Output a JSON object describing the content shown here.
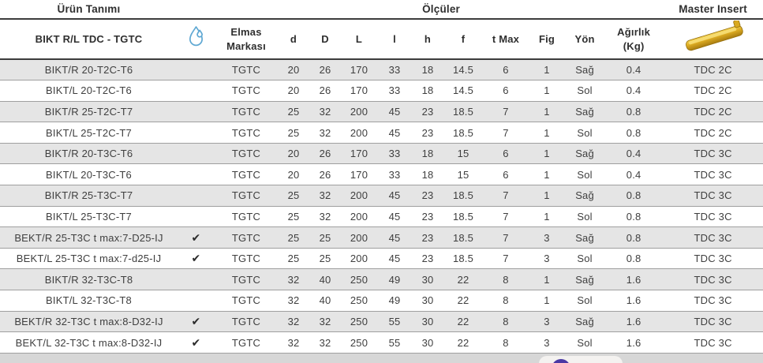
{
  "table": {
    "group_headers": {
      "product": "Ürün Tanımı",
      "dimensions": "Ölçüler",
      "master_insert": "Master Insert"
    },
    "columns": {
      "product": "BIKT R/L TDC - TGTC",
      "brand": "Elmas Markası",
      "d": "d",
      "D": "D",
      "L": "L",
      "l": "l",
      "h": "h",
      "f": "f",
      "t_max": "t Max",
      "fig": "Fig",
      "yon": "Yön",
      "weight_line1": "Ağırlık",
      "weight_line2": "(Kg)"
    },
    "check_glyph": "✔",
    "rows": [
      {
        "product": "BIKT/R 20-T2C-T6",
        "check": false,
        "brand": "TGTC",
        "d": "20",
        "D": "26",
        "L": "170",
        "l": "33",
        "h": "18",
        "f": "14.5",
        "t_max": "6",
        "fig": "1",
        "yon": "Sağ",
        "weight": "0.4",
        "insert": "TDC 2C"
      },
      {
        "product": "BIKT/L 20-T2C-T6",
        "check": false,
        "brand": "TGTC",
        "d": "20",
        "D": "26",
        "L": "170",
        "l": "33",
        "h": "18",
        "f": "14.5",
        "t_max": "6",
        "fig": "1",
        "yon": "Sol",
        "weight": "0.4",
        "insert": "TDC 2C"
      },
      {
        "product": "BIKT/R 25-T2C-T7",
        "check": false,
        "brand": "TGTC",
        "d": "25",
        "D": "32",
        "L": "200",
        "l": "45",
        "h": "23",
        "f": "18.5",
        "t_max": "7",
        "fig": "1",
        "yon": "Sağ",
        "weight": "0.8",
        "insert": "TDC 2C"
      },
      {
        "product": "BIKT/L 25-T2C-T7",
        "check": false,
        "brand": "TGTC",
        "d": "25",
        "D": "32",
        "L": "200",
        "l": "45",
        "h": "23",
        "f": "18.5",
        "t_max": "7",
        "fig": "1",
        "yon": "Sol",
        "weight": "0.8",
        "insert": "TDC 2C"
      },
      {
        "product": "BIKT/R 20-T3C-T6",
        "check": false,
        "brand": "TGTC",
        "d": "20",
        "D": "26",
        "L": "170",
        "l": "33",
        "h": "18",
        "f": "15",
        "t_max": "6",
        "fig": "1",
        "yon": "Sağ",
        "weight": "0.4",
        "insert": "TDC 3C"
      },
      {
        "product": "BIKT/L 20-T3C-T6",
        "check": false,
        "brand": "TGTC",
        "d": "20",
        "D": "26",
        "L": "170",
        "l": "33",
        "h": "18",
        "f": "15",
        "t_max": "6",
        "fig": "1",
        "yon": "Sol",
        "weight": "0.4",
        "insert": "TDC 3C"
      },
      {
        "product": "BIKT/R 25-T3C-T7",
        "check": false,
        "brand": "TGTC",
        "d": "25",
        "D": "32",
        "L": "200",
        "l": "45",
        "h": "23",
        "f": "18.5",
        "t_max": "7",
        "fig": "1",
        "yon": "Sağ",
        "weight": "0.8",
        "insert": "TDC 3C"
      },
      {
        "product": "BIKT/L 25-T3C-T7",
        "check": false,
        "brand": "TGTC",
        "d": "25",
        "D": "32",
        "L": "200",
        "l": "45",
        "h": "23",
        "f": "18.5",
        "t_max": "7",
        "fig": "1",
        "yon": "Sol",
        "weight": "0.8",
        "insert": "TDC 3C"
      },
      {
        "product": "BEKT/R 25-T3C t max:7-D25-IJ",
        "check": true,
        "brand": "TGTC",
        "d": "25",
        "D": "25",
        "L": "200",
        "l": "45",
        "h": "23",
        "f": "18.5",
        "t_max": "7",
        "fig": "3",
        "yon": "Sağ",
        "weight": "0.8",
        "insert": "TDC 3C"
      },
      {
        "product": "BEKT/L 25-T3C t max:7-d25-IJ",
        "check": true,
        "brand": "TGTC",
        "d": "25",
        "D": "25",
        "L": "200",
        "l": "45",
        "h": "23",
        "f": "18.5",
        "t_max": "7",
        "fig": "3",
        "yon": "Sol",
        "weight": "0.8",
        "insert": "TDC 3C"
      },
      {
        "product": "BIKT/R 32-T3C-T8",
        "check": false,
        "brand": "TGTC",
        "d": "32",
        "D": "40",
        "L": "250",
        "l": "49",
        "h": "30",
        "f": "22",
        "t_max": "8",
        "fig": "1",
        "yon": "Sağ",
        "weight": "1.6",
        "insert": "TDC 3C"
      },
      {
        "product": "BIKT/L 32-T3C-T8",
        "check": false,
        "brand": "TGTC",
        "d": "32",
        "D": "40",
        "L": "250",
        "l": "49",
        "h": "30",
        "f": "22",
        "t_max": "8",
        "fig": "1",
        "yon": "Sol",
        "weight": "1.6",
        "insert": "TDC 3C"
      },
      {
        "product": "BEKT/R 32-T3C t max:8-D32-IJ",
        "check": true,
        "brand": "TGTC",
        "d": "32",
        "D": "32",
        "L": "250",
        "l": "55",
        "h": "30",
        "f": "22",
        "t_max": "8",
        "fig": "3",
        "yon": "Sağ",
        "weight": "1.6",
        "insert": "TDC 3C"
      },
      {
        "product": "BEKT/L 32-T3C t max:8-D32-IJ",
        "check": true,
        "brand": "TGTC",
        "d": "32",
        "D": "32",
        "L": "250",
        "l": "55",
        "h": "30",
        "f": "22",
        "t_max": "8",
        "fig": "3",
        "yon": "Sol",
        "weight": "1.6",
        "insert": "TDC 3C"
      }
    ],
    "icons": {
      "coolant": "water-drop-icon",
      "master_insert": "gold-insert-image"
    }
  },
  "colors": {
    "coolant_blue": "#5fa8d3",
    "insert_gold": "#d9a51f",
    "widget_purple": "#4a38a4",
    "stripe_gray": "#e5e5e5"
  }
}
